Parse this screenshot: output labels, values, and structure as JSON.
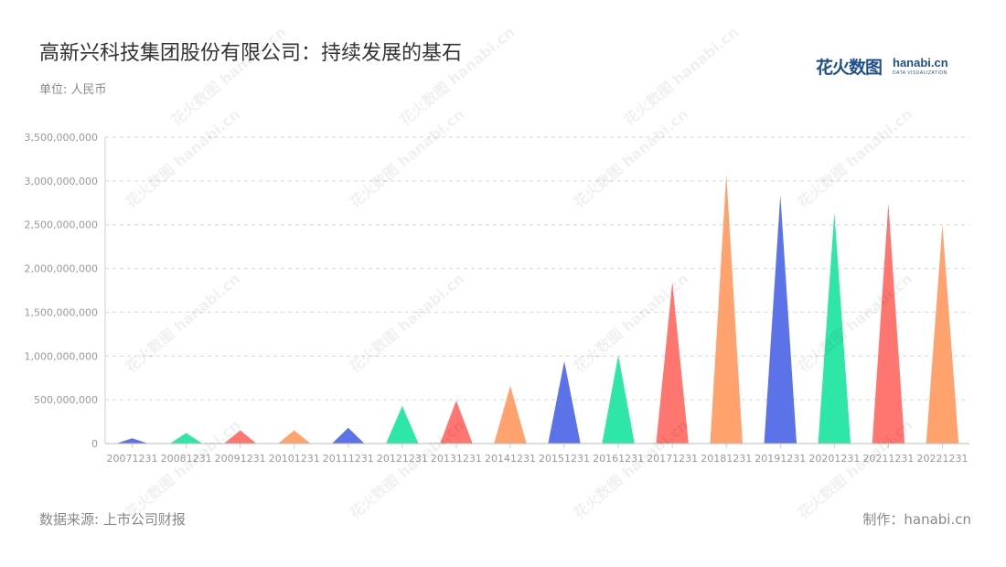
{
  "header": {
    "title": "高新兴科技集团股份有限公司：持续发展的基石",
    "unit": "单位: 人民币"
  },
  "logo": {
    "cn": "花火数图",
    "en": "hanabi.cn",
    "sub": "DATA VISUALIZATION"
  },
  "watermark": "花火数图 hanabi.cn",
  "footer": {
    "source": "数据来源: 上市公司财报",
    "credit": "制作：hanabi.cn"
  },
  "colors": {
    "blue": "#5b72e8",
    "green": "#2ee6a8",
    "red": "#ff7570",
    "orange": "#ffa26e"
  },
  "chart_data": {
    "type": "bar",
    "style": "pointed-triangle",
    "title": "",
    "xlabel": "",
    "ylabel": "",
    "categories": [
      "20071231",
      "20081231",
      "20091231",
      "20101231",
      "20111231",
      "20121231",
      "20131231",
      "20141231",
      "20151231",
      "20161231",
      "20171231",
      "20181231",
      "20191231",
      "20201231",
      "20211231",
      "20221231"
    ],
    "values": [
      60000000,
      120000000,
      150000000,
      150000000,
      180000000,
      430000000,
      490000000,
      660000000,
      940000000,
      1010000000,
      1840000000,
      3080000000,
      2840000000,
      2640000000,
      2740000000,
      2500000000
    ],
    "bar_colors": [
      "#5b72e8",
      "#2ee6a8",
      "#ff7570",
      "#ffa26e",
      "#5b72e8",
      "#2ee6a8",
      "#ff7570",
      "#ffa26e",
      "#5b72e8",
      "#2ee6a8",
      "#ff7570",
      "#ffa26e",
      "#5b72e8",
      "#2ee6a8",
      "#ff7570",
      "#ffa26e"
    ],
    "ylim": [
      0,
      3500000000
    ],
    "yticks": [
      "0",
      "500,000,000",
      "1,000,000,000",
      "1,500,000,000",
      "2,000,000,000",
      "2,500,000,000",
      "3,000,000,000",
      "3,500,000,000"
    ],
    "ytick_values": [
      0,
      500000000,
      1000000000,
      1500000000,
      2000000000,
      2500000000,
      3000000000,
      3500000000
    ],
    "grid": true,
    "legend": "none"
  }
}
